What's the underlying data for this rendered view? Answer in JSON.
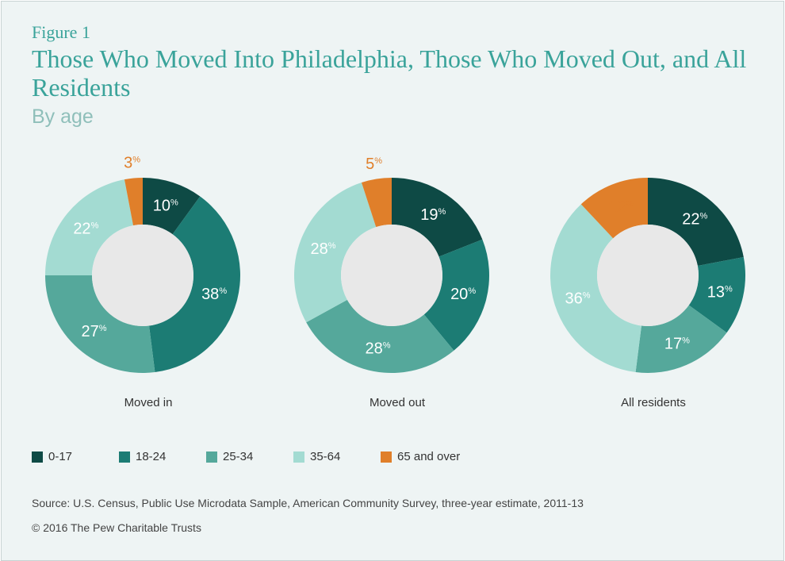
{
  "figure_label": "Figure 1",
  "title": "Those Who Moved Into Philadelphia, Those Who Moved Out, and All Residents",
  "subtitle": "By age",
  "legend": [
    {
      "label": "0-17",
      "color": "#0e4a45"
    },
    {
      "label": "18-24",
      "color": "#1c7c74"
    },
    {
      "label": "25-34",
      "color": "#55a89b"
    },
    {
      "label": "35-64",
      "color": "#a3dbd2"
    },
    {
      "label": "65 and over",
      "color": "#e07f2a"
    }
  ],
  "chart_data": [
    {
      "type": "pie",
      "title": "Moved in",
      "categories": [
        "0-17",
        "18-24",
        "25-34",
        "35-64",
        "65 and over"
      ],
      "values": [
        10,
        38,
        27,
        22,
        3
      ],
      "unit": "%"
    },
    {
      "type": "pie",
      "title": "Moved out",
      "categories": [
        "0-17",
        "18-24",
        "25-34",
        "35-64",
        "65 and over"
      ],
      "values": [
        19,
        20,
        28,
        28,
        5
      ],
      "unit": "%"
    },
    {
      "type": "pie",
      "title": "All residents",
      "categories": [
        "0-17",
        "18-24",
        "25-34",
        "35-64",
        "65 and over"
      ],
      "values": [
        22,
        13,
        17,
        36,
        12
      ],
      "unit": "%"
    }
  ],
  "source": "Source: U.S. Census, Public Use Microdata Sample, American Community Survey, three-year estimate, 2011-13",
  "copyright": "© 2016 The Pew Charitable Trusts"
}
